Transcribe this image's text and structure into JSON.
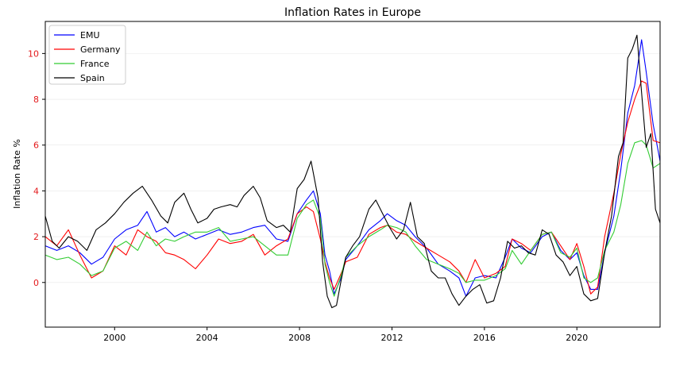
{
  "chart_data": {
    "type": "line",
    "title": "Inflation Rates in Europe",
    "xlabel": "",
    "ylabel": "Inflation Rate %",
    "xlim": [
      1997.0,
      2023.6
    ],
    "ylim": [
      -1.95,
      11.4
    ],
    "xticks": [
      2000,
      2004,
      2008,
      2012,
      2016,
      2020
    ],
    "xtick_labels": [
      "2000",
      "2004",
      "2008",
      "2012",
      "2016",
      "2020"
    ],
    "yticks": [
      0,
      2,
      4,
      6,
      8,
      10
    ],
    "ytick_labels": [
      "0",
      "2",
      "4",
      "6",
      "8",
      "10"
    ],
    "ytick_color": "#e31a1c",
    "grid": true,
    "legend_position": "top-left",
    "series": [
      {
        "name": "EMU",
        "color": "#0000ff",
        "x": [
          1997.0,
          1997.5,
          1998.0,
          1998.5,
          1999.0,
          1999.5,
          2000.0,
          2000.5,
          2001.0,
          2001.4,
          2001.8,
          2002.2,
          2002.6,
          2003.0,
          2003.5,
          2004.0,
          2004.5,
          2005.0,
          2005.5,
          2006.0,
          2006.5,
          2007.0,
          2007.5,
          2007.9,
          2008.3,
          2008.6,
          2008.9,
          2009.1,
          2009.3,
          2009.5,
          2009.8,
          2010.0,
          2010.5,
          2011.0,
          2011.5,
          2011.8,
          2012.2,
          2012.6,
          2013.0,
          2013.5,
          2014.0,
          2014.5,
          2014.9,
          2015.2,
          2015.6,
          2016.0,
          2016.5,
          2016.9,
          2017.2,
          2017.6,
          2018.0,
          2018.5,
          2018.9,
          2019.3,
          2019.7,
          2020.0,
          2020.3,
          2020.6,
          2020.9,
          2021.2,
          2021.6,
          2021.9,
          2022.2,
          2022.5,
          2022.8,
          2023.0,
          2023.3,
          2023.6
        ],
        "values": [
          1.6,
          1.4,
          1.6,
          1.3,
          0.8,
          1.1,
          1.9,
          2.3,
          2.5,
          3.1,
          2.2,
          2.4,
          2.0,
          2.2,
          1.9,
          2.1,
          2.3,
          2.1,
          2.2,
          2.4,
          2.5,
          1.9,
          1.8,
          3.0,
          3.6,
          4.0,
          3.0,
          1.2,
          0.5,
          -0.5,
          0.2,
          1.0,
          1.6,
          2.3,
          2.7,
          3.0,
          2.7,
          2.5,
          2.0,
          1.5,
          0.8,
          0.5,
          0.2,
          -0.6,
          0.2,
          0.3,
          0.2,
          1.1,
          1.9,
          1.5,
          1.3,
          2.0,
          2.2,
          1.4,
          1.0,
          1.3,
          0.3,
          -0.3,
          -0.3,
          1.3,
          2.9,
          4.9,
          7.4,
          8.6,
          10.6,
          9.2,
          6.9,
          5.3
        ]
      },
      {
        "name": "Germany",
        "color": "#ff0000",
        "x": [
          1997.0,
          1997.5,
          1998.0,
          1998.5,
          1999.0,
          1999.5,
          2000.0,
          2000.5,
          2001.0,
          2001.4,
          2001.8,
          2002.2,
          2002.6,
          2003.0,
          2003.5,
          2004.0,
          2004.5,
          2005.0,
          2005.5,
          2006.0,
          2006.5,
          2007.0,
          2007.5,
          2007.9,
          2008.3,
          2008.6,
          2008.9,
          2009.1,
          2009.3,
          2009.5,
          2009.8,
          2010.0,
          2010.5,
          2011.0,
          2011.5,
          2011.8,
          2012.2,
          2012.6,
          2013.0,
          2013.5,
          2014.0,
          2014.5,
          2014.9,
          2015.2,
          2015.6,
          2016.0,
          2016.5,
          2016.9,
          2017.2,
          2017.6,
          2018.0,
          2018.5,
          2018.9,
          2019.3,
          2019.7,
          2020.0,
          2020.3,
          2020.6,
          2020.9,
          2021.2,
          2021.6,
          2021.9,
          2022.2,
          2022.5,
          2022.8,
          2023.0,
          2023.3,
          2023.6
        ],
        "values": [
          2.0,
          1.6,
          2.3,
          1.2,
          0.2,
          0.5,
          1.6,
          1.2,
          2.3,
          2.0,
          1.8,
          1.3,
          1.2,
          1.0,
          0.6,
          1.2,
          1.9,
          1.7,
          1.8,
          2.1,
          1.2,
          1.6,
          1.9,
          3.0,
          3.3,
          3.1,
          1.9,
          0.9,
          0.2,
          -0.3,
          0.4,
          0.9,
          1.1,
          2.1,
          2.4,
          2.5,
          2.2,
          2.1,
          1.8,
          1.5,
          1.2,
          0.9,
          0.5,
          0.0,
          1.0,
          0.2,
          0.4,
          0.7,
          1.9,
          1.7,
          1.4,
          2.1,
          2.2,
          1.6,
          1.0,
          1.7,
          0.7,
          -0.5,
          -0.2,
          2.0,
          3.9,
          5.6,
          7.0,
          8.0,
          8.8,
          8.7,
          6.2,
          6.1
        ]
      },
      {
        "name": "France",
        "color": "#33cc33",
        "x": [
          1997.0,
          1997.5,
          1998.0,
          1998.5,
          1999.0,
          1999.5,
          2000.0,
          2000.5,
          2001.0,
          2001.4,
          2001.8,
          2002.2,
          2002.6,
          2003.0,
          2003.5,
          2004.0,
          2004.5,
          2005.0,
          2005.5,
          2006.0,
          2006.5,
          2007.0,
          2007.5,
          2007.9,
          2008.3,
          2008.6,
          2008.9,
          2009.1,
          2009.3,
          2009.5,
          2009.8,
          2010.0,
          2010.5,
          2011.0,
          2011.5,
          2011.8,
          2012.2,
          2012.6,
          2013.0,
          2013.5,
          2014.0,
          2014.5,
          2014.9,
          2015.2,
          2015.6,
          2016.0,
          2016.5,
          2016.9,
          2017.2,
          2017.6,
          2018.0,
          2018.5,
          2018.9,
          2019.3,
          2019.7,
          2020.0,
          2020.3,
          2020.6,
          2020.9,
          2021.2,
          2021.6,
          2021.9,
          2022.2,
          2022.5,
          2022.8,
          2023.0,
          2023.3,
          2023.6
        ],
        "values": [
          1.2,
          1.0,
          1.1,
          0.8,
          0.3,
          0.5,
          1.5,
          1.8,
          1.4,
          2.2,
          1.6,
          1.9,
          1.8,
          2.0,
          2.2,
          2.2,
          2.4,
          1.8,
          1.9,
          2.0,
          1.6,
          1.2,
          1.2,
          2.8,
          3.4,
          3.6,
          2.8,
          0.8,
          0.0,
          -0.6,
          0.3,
          1.1,
          1.6,
          2.0,
          2.3,
          2.5,
          2.4,
          2.2,
          1.6,
          1.0,
          0.8,
          0.6,
          0.4,
          0.0,
          0.1,
          0.1,
          0.3,
          0.6,
          1.4,
          0.8,
          1.4,
          2.1,
          2.2,
          1.3,
          1.1,
          1.5,
          0.2,
          0.0,
          0.2,
          1.4,
          2.2,
          3.4,
          5.2,
          6.1,
          6.2,
          6.0,
          5.0,
          5.2
        ]
      },
      {
        "name": "Spain",
        "color": "#000000",
        "x": [
          1997.0,
          1997.3,
          1997.6,
          1998.0,
          1998.4,
          1998.8,
          1999.2,
          1999.6,
          2000.0,
          2000.4,
          2000.8,
          2001.2,
          2001.6,
          2002.0,
          2002.3,
          2002.6,
          2003.0,
          2003.3,
          2003.6,
          2004.0,
          2004.3,
          2004.6,
          2005.0,
          2005.3,
          2005.6,
          2006.0,
          2006.3,
          2006.6,
          2007.0,
          2007.3,
          2007.6,
          2007.9,
          2008.2,
          2008.5,
          2008.8,
          2009.0,
          2009.2,
          2009.4,
          2009.6,
          2009.8,
          2010.0,
          2010.3,
          2010.6,
          2011.0,
          2011.3,
          2011.6,
          2011.9,
          2012.2,
          2012.5,
          2012.8,
          2013.1,
          2013.4,
          2013.7,
          2014.0,
          2014.3,
          2014.6,
          2014.9,
          2015.2,
          2015.5,
          2015.8,
          2016.1,
          2016.4,
          2016.7,
          2017.0,
          2017.3,
          2017.6,
          2017.9,
          2018.2,
          2018.5,
          2018.8,
          2019.1,
          2019.4,
          2019.7,
          2020.0,
          2020.3,
          2020.6,
          2020.9,
          2021.2,
          2021.5,
          2021.8,
          2022.0,
          2022.2,
          2022.4,
          2022.6,
          2022.8,
          2023.0,
          2023.2,
          2023.4,
          2023.6
        ],
        "values": [
          2.9,
          1.8,
          1.5,
          2.0,
          1.8,
          1.4,
          2.3,
          2.6,
          3.0,
          3.5,
          3.9,
          4.2,
          3.6,
          2.9,
          2.6,
          3.5,
          3.9,
          3.2,
          2.6,
          2.8,
          3.2,
          3.3,
          3.4,
          3.3,
          3.8,
          4.2,
          3.7,
          2.7,
          2.4,
          2.5,
          2.2,
          4.1,
          4.5,
          5.3,
          3.7,
          0.9,
          -0.6,
          -1.1,
          -1.0,
          0.1,
          1.1,
          1.6,
          2.0,
          3.2,
          3.6,
          3.0,
          2.4,
          1.9,
          2.3,
          3.5,
          2.0,
          1.7,
          0.5,
          0.2,
          0.2,
          -0.5,
          -1.0,
          -0.6,
          -0.3,
          -0.1,
          -0.9,
          -0.8,
          0.2,
          1.8,
          1.5,
          1.6,
          1.3,
          1.2,
          2.3,
          2.1,
          1.2,
          0.9,
          0.3,
          0.7,
          -0.5,
          -0.8,
          -0.7,
          1.3,
          2.9,
          5.5,
          6.1,
          9.8,
          10.2,
          10.8,
          8.3,
          5.9,
          6.5,
          3.2,
          2.6
        ]
      }
    ]
  }
}
